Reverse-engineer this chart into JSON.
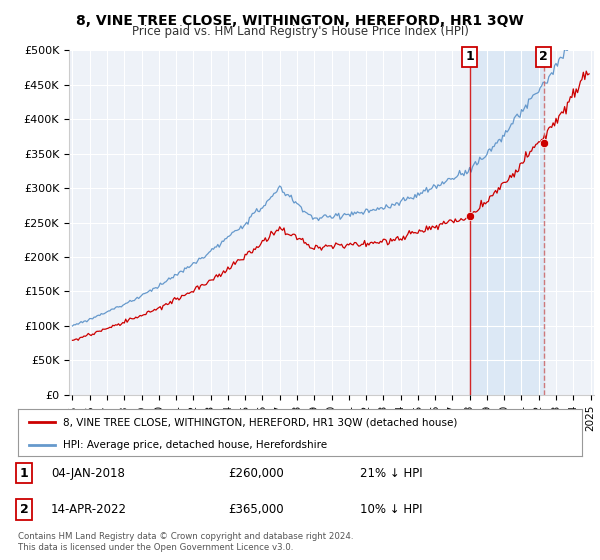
{
  "title": "8, VINE TREE CLOSE, WITHINGTON, HEREFORD, HR1 3QW",
  "subtitle": "Price paid vs. HM Land Registry's House Price Index (HPI)",
  "legend_line1": "8, VINE TREE CLOSE, WITHINGTON, HEREFORD, HR1 3QW (detached house)",
  "legend_line2": "HPI: Average price, detached house, Herefordshire",
  "annotation1_date": "04-JAN-2018",
  "annotation1_price": "£260,000",
  "annotation1_hpi": "21% ↓ HPI",
  "annotation2_date": "14-APR-2022",
  "annotation2_price": "£365,000",
  "annotation2_hpi": "10% ↓ HPI",
  "footer": "Contains HM Land Registry data © Crown copyright and database right 2024.\nThis data is licensed under the Open Government Licence v3.0.",
  "sale1_x": 2018.01,
  "sale1_y": 260000,
  "sale2_x": 2022.28,
  "sale2_y": 365000,
  "ylim": [
    0,
    500000
  ],
  "xlim_start": 1994.8,
  "xlim_end": 2025.2,
  "red_color": "#cc0000",
  "blue_color": "#6699cc",
  "shade_color": "#dce8f5",
  "vline1_color": "#cc0000",
  "vline2_color": "#cc6666",
  "background_color": "#eef2f8",
  "grid_color": "#ffffff"
}
